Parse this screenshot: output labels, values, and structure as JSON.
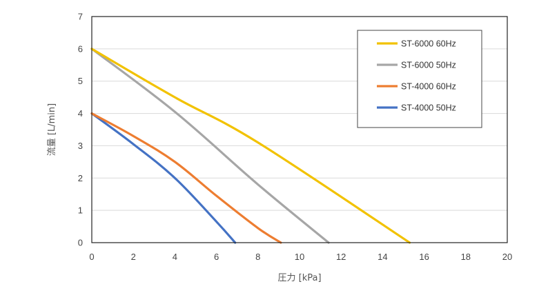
{
  "chart_data": {
    "type": "line",
    "title": "",
    "xlabel": "圧力 [kPa]",
    "ylabel": "流量 [L/min]",
    "xlim": [
      0,
      20
    ],
    "ylim": [
      0,
      7
    ],
    "x_ticks": [
      0,
      2,
      4,
      6,
      8,
      10,
      12,
      14,
      16,
      18,
      20
    ],
    "y_ticks": [
      0,
      1,
      2,
      3,
      4,
      5,
      6,
      7
    ],
    "grid": "horizontal",
    "legend_position": "top-right",
    "series": [
      {
        "name": "ST-6000 60Hz",
        "color": "#F2C200",
        "points": [
          [
            0,
            6
          ],
          [
            4,
            4.5
          ],
          [
            8,
            3.1
          ],
          [
            15.3,
            0
          ]
        ]
      },
      {
        "name": "ST-6000 50Hz",
        "color": "#A6A6A6",
        "points": [
          [
            0,
            6
          ],
          [
            4,
            4.05
          ],
          [
            8,
            1.8
          ],
          [
            11.4,
            0
          ]
        ]
      },
      {
        "name": "ST-4000 60Hz",
        "color": "#ED7D31",
        "points": [
          [
            0,
            4
          ],
          [
            2,
            3.3
          ],
          [
            4,
            2.5
          ],
          [
            6,
            1.45
          ],
          [
            8,
            0.45
          ],
          [
            9.1,
            0
          ]
        ]
      },
      {
        "name": "ST-4000 50Hz",
        "color": "#4472C4",
        "points": [
          [
            0,
            4
          ],
          [
            2,
            3.05
          ],
          [
            4,
            2.0
          ],
          [
            6,
            0.65
          ],
          [
            6.9,
            0
          ]
        ]
      }
    ]
  }
}
